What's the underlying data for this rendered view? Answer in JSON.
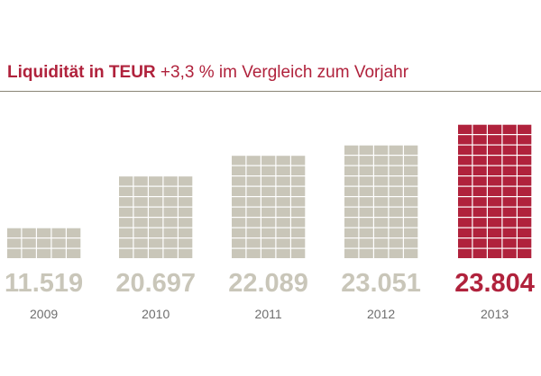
{
  "header": {
    "title_bold": "Liquidität in TEUR",
    "title_rest": " +3,3 % im Vergleich zum Vorjahr"
  },
  "colors": {
    "accent": "#b0223c",
    "muted": "#c9c6b9",
    "year_text": "#6e6e6e",
    "rule": "#8a8576"
  },
  "chart_data": {
    "type": "bar",
    "title": "Liquidität in TEUR +3,3 % im Vergleich zum Vorjahr",
    "categories": [
      "2009",
      "2010",
      "2011",
      "2012",
      "2013"
    ],
    "values": [
      11519,
      20697,
      22089,
      23051,
      23804
    ],
    "value_labels": [
      "11.519",
      "20.697",
      "22.089",
      "23.051",
      "23.804"
    ],
    "highlight_index": 4,
    "unit": "TEUR",
    "block_counts": [
      15,
      40,
      50,
      55,
      65
    ]
  }
}
